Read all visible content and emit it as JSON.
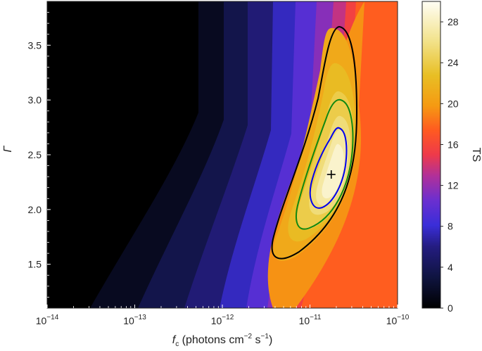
{
  "chart_data": {
    "type": "heatmap",
    "title": "",
    "xlabel": {
      "symbol": "f",
      "subscript": "c",
      "units_prefix": " (photons cm",
      "units_exp1": "−2",
      "units_mid": " s",
      "units_exp2": "−1",
      "units_suffix": ")"
    },
    "ylabel": "Γ",
    "x_scale": "log",
    "xlim": [
      1e-14,
      1e-10
    ],
    "ylim": [
      1.1,
      3.9
    ],
    "x_ticks": [
      {
        "value": 1e-14,
        "base": "10",
        "exp": "−14"
      },
      {
        "value": 1e-13,
        "base": "10",
        "exp": "−13"
      },
      {
        "value": 1e-12,
        "base": "10",
        "exp": "−12"
      },
      {
        "value": 1e-11,
        "base": "10",
        "exp": "−11"
      },
      {
        "value": 1e-10,
        "base": "10",
        "exp": "−10"
      }
    ],
    "y_ticks": [
      "1.5",
      "2.0",
      "2.5",
      "3.0",
      "3.5"
    ],
    "colorbar": {
      "label": "TS",
      "range": [
        0,
        30
      ],
      "ticks": [
        "0",
        "4",
        "8",
        "12",
        "16",
        "20",
        "24",
        "28"
      ]
    },
    "best_fit": {
      "x": 1.75e-11,
      "y": 2.32,
      "marker": "+"
    },
    "contours": [
      {
        "name": "",
        "color": "#0000ee"
      },
      {
        "name": "",
        "color": "#118811"
      },
      {
        "name": "",
        "color": "#000000"
      }
    ],
    "ts_peak": 30,
    "grid": false
  }
}
